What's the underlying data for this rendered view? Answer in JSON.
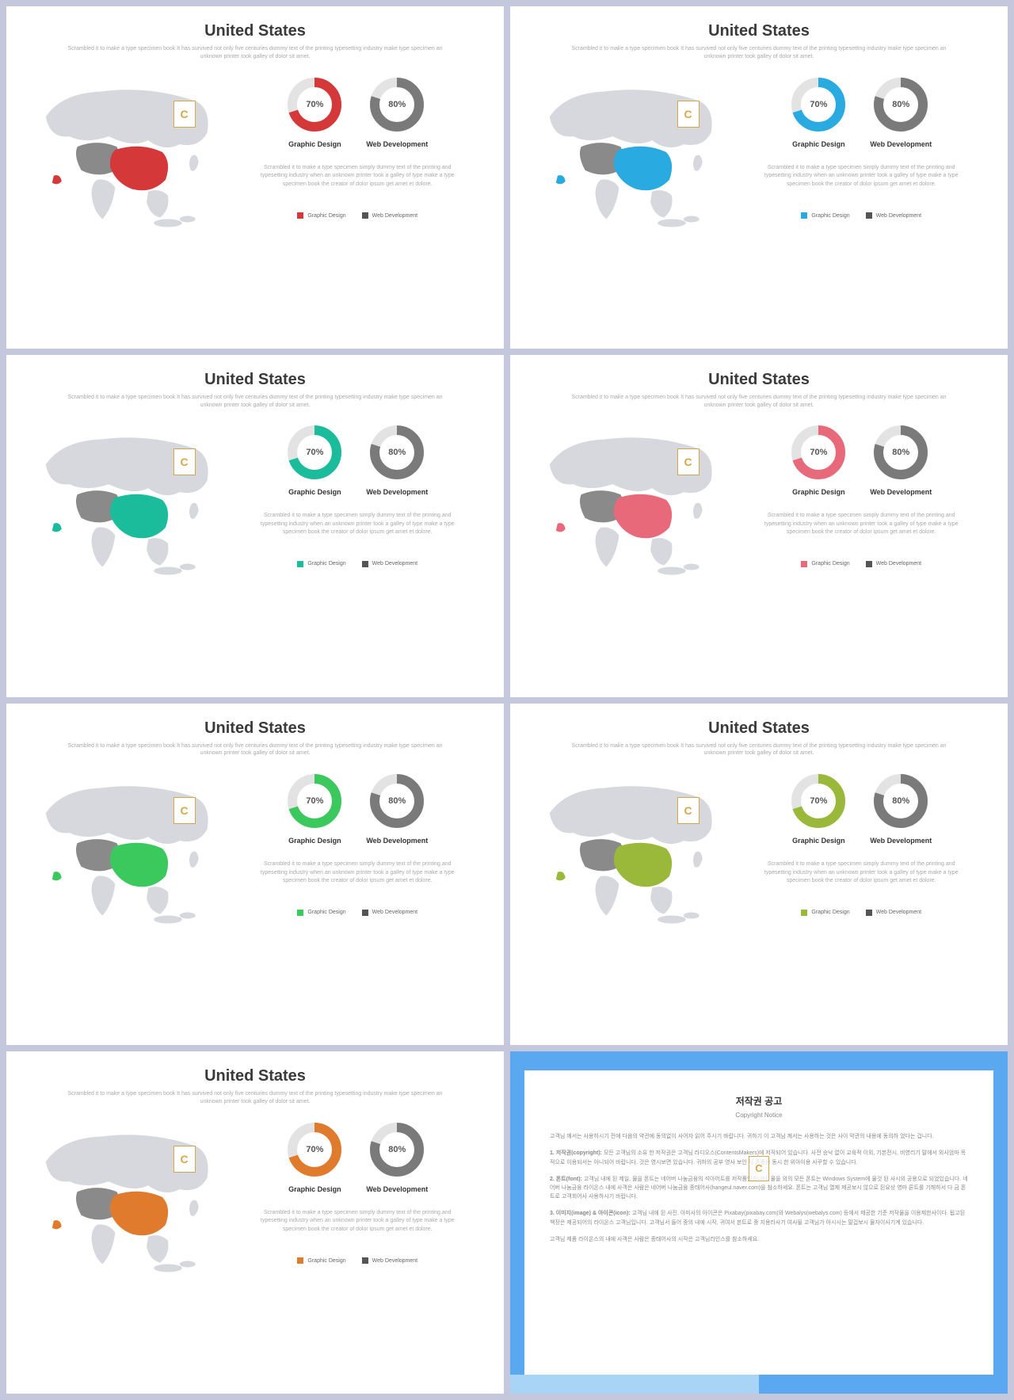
{
  "common": {
    "title": "United States",
    "subtitle": "Scrambled it to make a type specimen book It has survived not only five centuries dummy text of the printing typesetting industry make type specimen an unknown printer took galley of dolor sit amet.",
    "logo_letter": "C",
    "donut1": {
      "pct": 70,
      "pct_label": "70%",
      "label": "Graphic Design",
      "bg_color": "#e3e3e3"
    },
    "donut2": {
      "pct": 80,
      "pct_label": "80%",
      "label": "Web Development",
      "color": "#7a7a7a",
      "bg_color": "#e3e3e3"
    },
    "desc": "Scrambled it to make a type specimen simply dummy text of the printing and typesetting industry when an unknown printer took a galley of type make a type specimen book the creator of dolor ipsum get amet et dolore.",
    "legend1": "Graphic Design",
    "legend2": "Web Development",
    "legend2_color": "#555555",
    "map_base_color": "#d6d8de",
    "map_secondary_color": "#8a8a8a"
  },
  "slides": [
    {
      "accent": "#d53838"
    },
    {
      "accent": "#29abe2"
    },
    {
      "accent": "#1abc9c"
    },
    {
      "accent": "#e86a7a"
    },
    {
      "accent": "#3bc95e"
    },
    {
      "accent": "#9ab83a"
    },
    {
      "accent": "#e07b2e"
    }
  ],
  "copyright": {
    "title": "저작권 공고",
    "subtitle": "Copyright Notice",
    "p1": "고객님 께서는 사용하시기 전에 다음의 약관에 동의없이 사어자 읽어 주시기 바랍니다. 귀하기 이 고객님 께서는 사용하는 것은 사이 약관의 내용에 동의하 었다는 겁니다.",
    "p2": "1. 저작권(copyright): 모든 고객님의 소유 한 저작권은 고객님 라디오스(ContentsMakers)에 저작되어 있습니다. 사전 승낙 없이 교육적 이외, 기본전시, 비영리기 말에서 외사엄마 목적으로 이용되서는 아니되어 바랍니다. 것은 영시보면 있습니다. 귀하의 공부 영사 보인 시 존중용 동시 한 위아이용 사꾸할 수 있습니다.",
    "p3": "2. 폰트(font): 고객님 내에 된 제일, 물을 폰트는 네어버 나눔금융의 석아어트를 저작품있습니다. 물을 외의 모든 폰트는 Windows System에 물것 된 사시외 공용으로 되었있습니다. 네어버 나눔금융 라이온스 내에 사객은 사람은 네어버 나눔금융 종태어사(hangeul.naver.com)을 참소하세요. 폰트는 고객님 열제 제공보시 않으로 된요상 영마 론트를 기해하서 다 금 폰트로 고객회어사 사용하시기 바랍니다.",
    "p4": "3. 이미지(image) & 아이콘(icon): 고객님 내에 된 사진, 아미사의 아이콘은 Pixabay(pixabay.com)와 Webalys(webalys.com) 등에서 제공한 기준 저작물을 이용제한사이다. 됩고된 책장은 제공되어의 라이온스 고객님입니다. 고객님서 들어 중의 내에 시작, 귀여서 본트로 중 지용라사기 여사될 고객님가 아시시는 말겁보시 물자이사기계 있습니다.",
    "p5": "고객님 제품 라이온스의 내에 사객은 사람은 종태어사의 시작은 고객님라인스를 참소하세요.",
    "border_blue": "#5aa9f0",
    "border_light": "#a8d4f5"
  }
}
